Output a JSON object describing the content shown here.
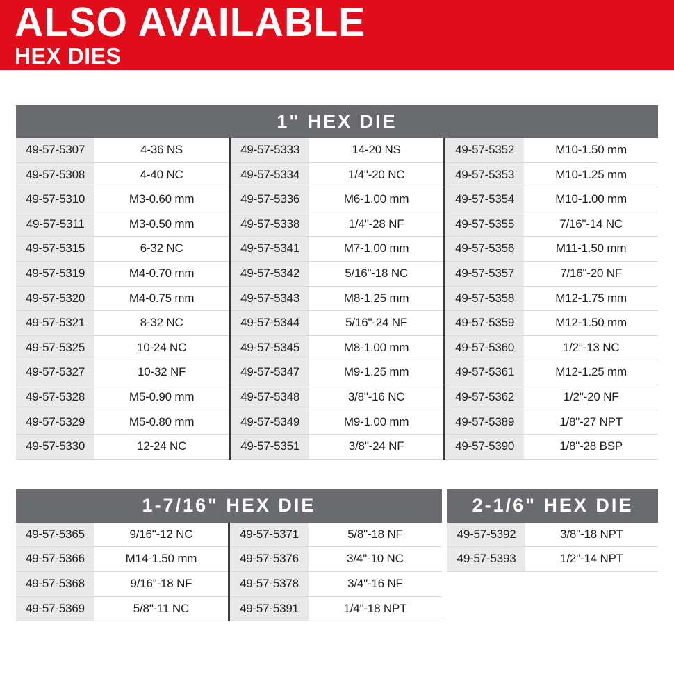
{
  "banner": {
    "title": "ALSO AVAILABLE",
    "subtitle": "HEX DIES"
  },
  "colors": {
    "brand_red": "#e20d1b",
    "header_gray": "#6a6b6e",
    "cell_gray": "#e9e9ea",
    "row_divider": "#d8d8d8",
    "group_separator": "#3a3a3c",
    "text_dark": "#1f1f21",
    "page_bg": "#ffffff"
  },
  "column_semantics": [
    "catalog-number",
    "thread-size"
  ],
  "tables": [
    {
      "title": "1\" HEX DIE",
      "groups": [
        [
          {
            "part": "49-57-5307",
            "size": "4-36 NS"
          },
          {
            "part": "49-57-5308",
            "size": "4-40 NC"
          },
          {
            "part": "49-57-5310",
            "size": "M3-0.60 mm"
          },
          {
            "part": "49-57-5311",
            "size": "M3-0.50 mm"
          },
          {
            "part": "49-57-5315",
            "size": "6-32 NC"
          },
          {
            "part": "49-57-5319",
            "size": "M4-0.70 mm"
          },
          {
            "part": "49-57-5320",
            "size": "M4-0.75 mm"
          },
          {
            "part": "49-57-5321",
            "size": "8-32 NC"
          },
          {
            "part": "49-57-5325",
            "size": "10-24 NC"
          },
          {
            "part": "49-57-5327",
            "size": "10-32 NF"
          },
          {
            "part": "49-57-5328",
            "size": "M5-0.90 mm"
          },
          {
            "part": "49-57-5329",
            "size": "M5-0.80 mm"
          },
          {
            "part": "49-57-5330",
            "size": "12-24 NC"
          }
        ],
        [
          {
            "part": "49-57-5333",
            "size": "14-20 NS"
          },
          {
            "part": "49-57-5334",
            "size": "1/4\"-20 NC"
          },
          {
            "part": "49-57-5336",
            "size": "M6-1.00 mm"
          },
          {
            "part": "49-57-5338",
            "size": "1/4\"-28 NF"
          },
          {
            "part": "49-57-5341",
            "size": "M7-1.00 mm"
          },
          {
            "part": "49-57-5342",
            "size": "5/16\"-18 NC"
          },
          {
            "part": "49-57-5343",
            "size": "M8-1.25 mm"
          },
          {
            "part": "49-57-5344",
            "size": "5/16\"-24 NF"
          },
          {
            "part": "49-57-5345",
            "size": "M8-1.00 mm"
          },
          {
            "part": "49-57-5347",
            "size": "M9-1.25 mm"
          },
          {
            "part": "49-57-5348",
            "size": "3/8\"-16 NC"
          },
          {
            "part": "49-57-5349",
            "size": "M9-1.00 mm"
          },
          {
            "part": "49-57-5351",
            "size": "3/8\"-24 NF"
          }
        ],
        [
          {
            "part": "49-57-5352",
            "size": "M10-1.50 mm"
          },
          {
            "part": "49-57-5353",
            "size": "M10-1.25 mm"
          },
          {
            "part": "49-57-5354",
            "size": "M10-1.00 mm"
          },
          {
            "part": "49-57-5355",
            "size": "7/16\"-14 NC"
          },
          {
            "part": "49-57-5356",
            "size": "M11-1.50 mm"
          },
          {
            "part": "49-57-5357",
            "size": "7/16\"-20 NF"
          },
          {
            "part": "49-57-5358",
            "size": "M12-1.75 mm"
          },
          {
            "part": "49-57-5359",
            "size": "M12-1.50 mm"
          },
          {
            "part": "49-57-5360",
            "size": "1/2\"-13 NC"
          },
          {
            "part": "49-57-5361",
            "size": "M12-1.25 mm"
          },
          {
            "part": "49-57-5362",
            "size": "1/2\"-20 NF"
          },
          {
            "part": "49-57-5389",
            "size": "1/8\"-27 NPT"
          },
          {
            "part": "49-57-5390",
            "size": "1/8\"-28 BSP"
          }
        ]
      ]
    },
    {
      "title": "1-7/16\" HEX DIE",
      "groups": [
        [
          {
            "part": "49-57-5365",
            "size": "9/16\"-12 NC"
          },
          {
            "part": "49-57-5366",
            "size": "M14-1.50 mm"
          },
          {
            "part": "49-57-5368",
            "size": "9/16\"-18 NF"
          },
          {
            "part": "49-57-5369",
            "size": "5/8\"-11 NC"
          }
        ],
        [
          {
            "part": "49-57-5371",
            "size": "5/8\"-18 NF"
          },
          {
            "part": "49-57-5376",
            "size": "3/4\"-10 NC"
          },
          {
            "part": "49-57-5378",
            "size": "3/4\"-16 NF"
          },
          {
            "part": "49-57-5391",
            "size": "1/4\"-18 NPT"
          }
        ]
      ]
    },
    {
      "title": "2-1/6\" HEX DIE",
      "groups": [
        [
          {
            "part": "49-57-5392",
            "size": "3/8\"-18 NPT"
          },
          {
            "part": "49-57-5393",
            "size": "1/2\"-14 NPT"
          }
        ]
      ]
    }
  ]
}
